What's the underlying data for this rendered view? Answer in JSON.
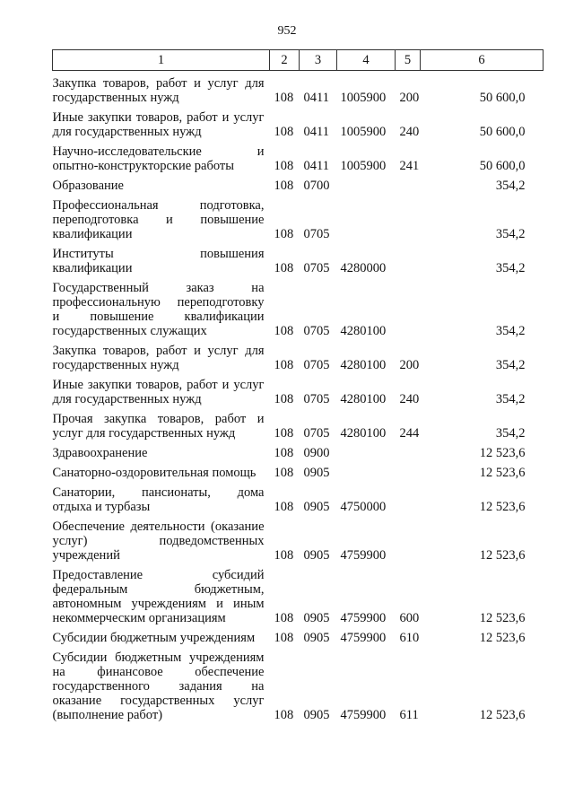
{
  "page_number": "952",
  "headers": [
    "1",
    "2",
    "3",
    "4",
    "5",
    "6"
  ],
  "rows": [
    {
      "lines": [
        "Закупка товаров, работ и услуг для",
        "государственных нужд"
      ],
      "c2": "108",
      "c3": "0411",
      "c4": "1005900",
      "c5": "200",
      "c6": "50 600,0"
    },
    {
      "lines": [
        "Иные закупки товаров, работ и услуг",
        "для государственных нужд"
      ],
      "c2": "108",
      "c3": "0411",
      "c4": "1005900",
      "c5": "240",
      "c6": "50 600,0"
    },
    {
      "lines": [
        "Научно-исследовательские и",
        "опытно-конструкторские работы"
      ],
      "c2": "108",
      "c3": "0411",
      "c4": "1005900",
      "c5": "241",
      "c6": "50 600,0"
    },
    {
      "lines": [
        "Образование"
      ],
      "c2": "108",
      "c3": "0700",
      "c4": "",
      "c5": "",
      "c6": "354,2"
    },
    {
      "lines": [
        "Профессиональная подготовка,",
        "переподготовка и повышение",
        "квалификации"
      ],
      "c2": "108",
      "c3": "0705",
      "c4": "",
      "c5": "",
      "c6": "354,2"
    },
    {
      "lines": [
        "Институты повышения",
        "квалификации"
      ],
      "c2": "108",
      "c3": "0705",
      "c4": "4280000",
      "c5": "",
      "c6": "354,2"
    },
    {
      "lines": [
        "Государственный заказ на",
        "профессиональную переподготовку",
        "и повышение квалификации",
        "государственных служащих"
      ],
      "c2": "108",
      "c3": "0705",
      "c4": "4280100",
      "c5": "",
      "c6": "354,2"
    },
    {
      "lines": [
        "Закупка товаров, работ и услуг для",
        "государственных нужд"
      ],
      "c2": "108",
      "c3": "0705",
      "c4": "4280100",
      "c5": "200",
      "c6": "354,2"
    },
    {
      "lines": [
        "Иные закупки товаров, работ и услуг",
        "для государственных нужд"
      ],
      "c2": "108",
      "c3": "0705",
      "c4": "4280100",
      "c5": "240",
      "c6": "354,2"
    },
    {
      "lines": [
        "Прочая закупка товаров, работ и",
        "услуг для государственных нужд"
      ],
      "c2": "108",
      "c3": "0705",
      "c4": "4280100",
      "c5": "244",
      "c6": "354,2"
    },
    {
      "lines": [
        "Здравоохранение"
      ],
      "c2": "108",
      "c3": "0900",
      "c4": "",
      "c5": "",
      "c6": "12 523,6"
    },
    {
      "lines": [
        "Санаторно-оздоровительная помощь"
      ],
      "c2": "108",
      "c3": "0905",
      "c4": "",
      "c5": "",
      "c6": "12 523,6"
    },
    {
      "lines": [
        "Санатории, пансионаты, дома",
        "отдыха и турбазы"
      ],
      "c2": "108",
      "c3": "0905",
      "c4": "4750000",
      "c5": "",
      "c6": "12 523,6"
    },
    {
      "lines": [
        "Обеспечение деятельности (оказание",
        "услуг) подведомственных",
        "учреждений"
      ],
      "c2": "108",
      "c3": "0905",
      "c4": "4759900",
      "c5": "",
      "c6": "12 523,6"
    },
    {
      "lines": [
        "Предоставление субсидий",
        "федеральным бюджетным,",
        "автономным учреждениям и иным",
        "некоммерческим организациям"
      ],
      "c2": "108",
      "c3": "0905",
      "c4": "4759900",
      "c5": "600",
      "c6": "12 523,6"
    },
    {
      "lines": [
        "Субсидии бюджетным учреждениям"
      ],
      "c2": "108",
      "c3": "0905",
      "c4": "4759900",
      "c5": "610",
      "c6": "12 523,6"
    },
    {
      "lines": [
        "Субсидии бюджетным учреждениям",
        "на финансовое обеспечение",
        "государственного задания на",
        "оказание государственных услуг",
        "(выполнение работ)"
      ],
      "c2": "108",
      "c3": "0905",
      "c4": "4759900",
      "c5": "611",
      "c6": "12 523,6"
    }
  ]
}
